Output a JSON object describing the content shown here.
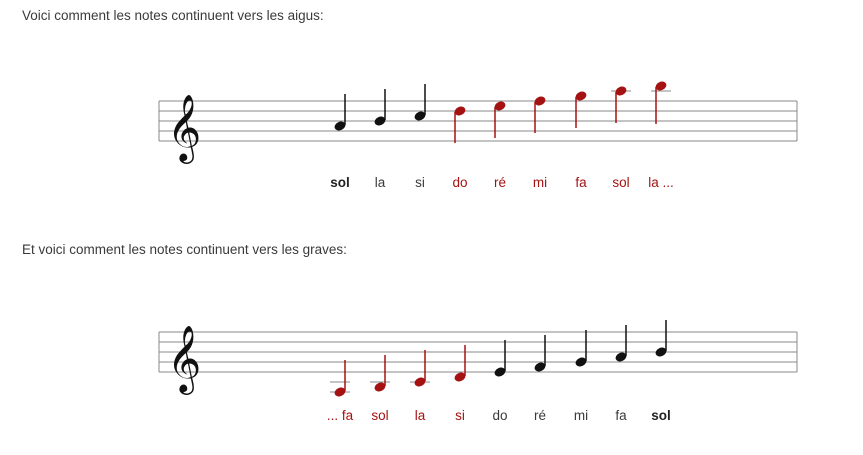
{
  "colors": {
    "highlight": "#a51212",
    "note": "#111111",
    "text": "#3a3a3a"
  },
  "section_up": {
    "intro": "Voici comment les notes continuent vers les aigus:",
    "clef": "treble-clef-icon",
    "notes": [
      {
        "name": "sol",
        "color": "black",
        "bold": true
      },
      {
        "name": "la",
        "color": "black",
        "bold": false
      },
      {
        "name": "si",
        "color": "black",
        "bold": false
      },
      {
        "name": "do",
        "color": "red",
        "bold": false
      },
      {
        "name": "ré",
        "color": "red",
        "bold": false
      },
      {
        "name": "mi",
        "color": "red",
        "bold": false
      },
      {
        "name": "fa",
        "color": "red",
        "bold": false
      },
      {
        "name": "sol",
        "color": "red",
        "bold": false
      },
      {
        "name": "la ...",
        "color": "red",
        "bold": false
      }
    ]
  },
  "section_down": {
    "intro": "Et voici comment les notes continuent vers les graves:",
    "clef": "treble-clef-icon",
    "notes": [
      {
        "name": "... fa",
        "color": "red",
        "bold": false
      },
      {
        "name": "sol",
        "color": "red",
        "bold": false
      },
      {
        "name": "la",
        "color": "red",
        "bold": false
      },
      {
        "name": "si",
        "color": "red",
        "bold": false
      },
      {
        "name": "do",
        "color": "black",
        "bold": false
      },
      {
        "name": "ré",
        "color": "black",
        "bold": false
      },
      {
        "name": "mi",
        "color": "black",
        "bold": false
      },
      {
        "name": "fa",
        "color": "black",
        "bold": false
      },
      {
        "name": "sol",
        "color": "black",
        "bold": true
      }
    ]
  }
}
